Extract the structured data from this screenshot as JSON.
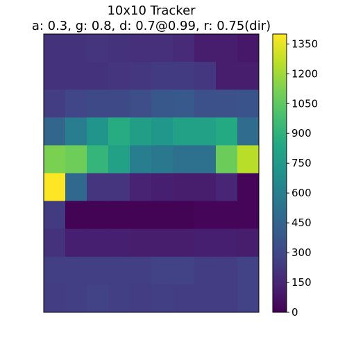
{
  "chart_data": {
    "type": "heatmap",
    "title_line1": "10x10 Tracker",
    "title_line2": "a: 0.3, g: 0.8, d: 0.7@0.99, r: 0.75(dir)",
    "rows": 10,
    "cols": 10,
    "colorbar_range": [
      0,
      1400
    ],
    "colorbar_ticks": [
      0,
      150,
      300,
      450,
      600,
      750,
      900,
      1050,
      1200,
      1350
    ],
    "colorbar_tick_labels": [
      "0",
      "150",
      "300",
      "450",
      "600",
      "750",
      "900",
      "1050",
      "1200",
      "1350"
    ],
    "colormap": "viridis",
    "values": [
      [
        200,
        200,
        210,
        200,
        190,
        190,
        170,
        110,
        110,
        90
      ],
      [
        200,
        200,
        200,
        210,
        220,
        240,
        240,
        220,
        110,
        110
      ],
      [
        250,
        290,
        310,
        310,
        330,
        380,
        390,
        340,
        340,
        360
      ],
      [
        460,
        590,
        720,
        860,
        780,
        730,
        800,
        800,
        850,
        490
      ],
      [
        1120,
        1090,
        920,
        800,
        590,
        560,
        520,
        520,
        1080,
        1250
      ],
      [
        1400,
        470,
        210,
        210,
        130,
        120,
        110,
        110,
        150,
        20
      ],
      [
        240,
        10,
        10,
        10,
        10,
        10,
        10,
        20,
        20,
        20
      ],
      [
        200,
        120,
        120,
        120,
        110,
        110,
        110,
        120,
        120,
        110
      ],
      [
        260,
        260,
        260,
        260,
        260,
        270,
        270,
        250,
        250,
        270
      ],
      [
        250,
        260,
        270,
        260,
        250,
        260,
        250,
        250,
        250,
        270
      ]
    ]
  }
}
